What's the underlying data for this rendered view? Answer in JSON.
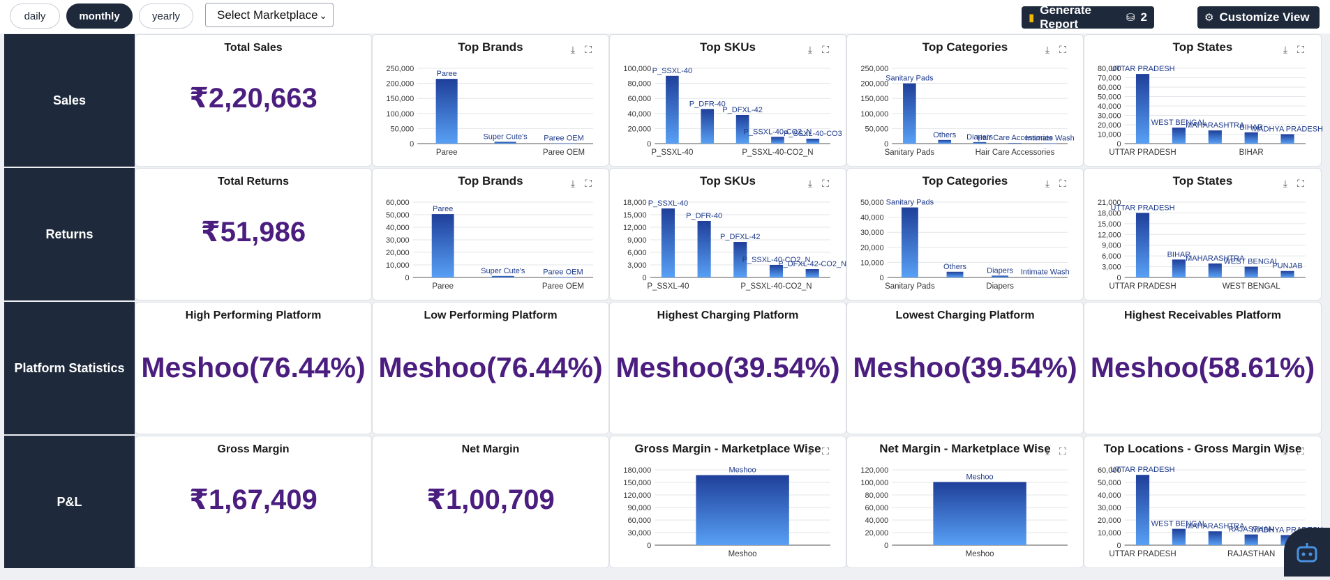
{
  "periods": [
    {
      "label": "daily",
      "active": false
    },
    {
      "label": "monthly",
      "active": true
    },
    {
      "label": "yearly",
      "active": false
    }
  ],
  "marketplace_select": {
    "value": "Select Marketplace"
  },
  "generate_report": {
    "label": "Generate Report",
    "count": "2"
  },
  "customize_view": {
    "label": "Customize View"
  },
  "colors": {
    "accent_text": "#4a1d7f",
    "dark_panel": "#1e2a3b",
    "bar_top": "#1f3f9a",
    "bar_bottom": "#58a0f5"
  },
  "rows": {
    "sales": {
      "label": "Sales",
      "kpi_title": "Total Sales",
      "kpi_value": "₹2,20,663"
    },
    "returns": {
      "label": "Returns",
      "kpi_title": "Total Returns",
      "kpi_value": "₹51,986"
    },
    "platform": {
      "label": "Platform Statistics",
      "cards": [
        {
          "title": "High Performing Platform",
          "value": "Meshoo(76.44%)"
        },
        {
          "title": "Low Performing Platform",
          "value": "Meshoo(76.44%)"
        },
        {
          "title": "Highest Charging Platform",
          "value": "Meshoo(39.54%)"
        },
        {
          "title": "Lowest Charging Platform",
          "value": "Meshoo(39.54%)"
        },
        {
          "title": "Highest Receivables Platform",
          "value": "Meshoo(58.61%)"
        }
      ]
    },
    "pl": {
      "label": "P&L",
      "gross_title": "Gross Margin",
      "gross_value": "₹1,67,409",
      "net_title": "Net Margin",
      "net_value": "₹1,00,709"
    }
  },
  "chart_data": [
    {
      "id": "sales_brands",
      "type": "bar",
      "title": "Top Brands",
      "categories": [
        "Paree",
        "Super Cute's",
        "Paree OEM"
      ],
      "values": [
        215000,
        6000,
        800
      ],
      "ticks": [
        0,
        50000,
        100000,
        150000,
        200000,
        250000
      ],
      "tick_labels": [
        "0",
        "50,000",
        "100,000",
        "150,000",
        "200,000",
        "250,000"
      ],
      "ylim": [
        0,
        250000
      ],
      "x_tick_labels": [
        "Paree",
        "",
        "Paree OEM"
      ]
    },
    {
      "id": "sales_skus",
      "type": "bar",
      "title": "Top SKUs",
      "categories": [
        "P_SSXL-40",
        "P_DFR-40",
        "P_DFXL-42",
        "P_SSXL-40-CO2_N",
        "P_SSXL-40-CO3"
      ],
      "values": [
        90000,
        46000,
        38000,
        9000,
        6500
      ],
      "ticks": [
        0,
        20000,
        40000,
        60000,
        80000,
        100000
      ],
      "tick_labels": [
        "0",
        "20,000",
        "40,000",
        "60,000",
        "80,000",
        "100,000"
      ],
      "ylim": [
        0,
        100000
      ],
      "x_tick_labels": [
        "P_SSXL-40",
        "",
        "",
        "P_SSXL-40-CO2_N",
        ""
      ]
    },
    {
      "id": "sales_categories",
      "type": "bar",
      "title": "Top Categories",
      "categories": [
        "Sanitary Pads",
        "Others",
        "Diapers",
        "Hair Care Accessories",
        "Intimate Wash"
      ],
      "values": [
        200000,
        12000,
        5000,
        2000,
        1000
      ],
      "ticks": [
        0,
        50000,
        100000,
        150000,
        200000,
        250000
      ],
      "tick_labels": [
        "0",
        "50,000",
        "100,000",
        "150,000",
        "200,000",
        "250,000"
      ],
      "ylim": [
        0,
        250000
      ],
      "x_tick_labels": [
        "Sanitary Pads",
        "",
        "",
        "Hair Care Accessories",
        ""
      ]
    },
    {
      "id": "sales_states",
      "type": "bar",
      "title": "Top States",
      "categories": [
        "UTTAR PRADESH",
        "WEST BENGAL",
        "MAHARASHTRA",
        "BIHAR",
        "MADHYA PRADESH"
      ],
      "values": [
        74000,
        17000,
        14000,
        12000,
        10000
      ],
      "ticks": [
        0,
        10000,
        20000,
        30000,
        40000,
        50000,
        60000,
        70000,
        80000
      ],
      "tick_labels": [
        "0",
        "10,000",
        "20,000",
        "30,000",
        "40,000",
        "50,000",
        "60,000",
        "70,000",
        "80,000"
      ],
      "ylim": [
        0,
        80000
      ],
      "x_tick_labels": [
        "UTTAR PRADESH",
        "",
        "",
        "BIHAR",
        ""
      ]
    },
    {
      "id": "ret_brands",
      "type": "bar",
      "title": "Top Brands",
      "categories": [
        "Paree",
        "Super Cute's",
        "Paree OEM"
      ],
      "values": [
        50500,
        1200,
        200
      ],
      "ticks": [
        0,
        10000,
        20000,
        30000,
        40000,
        50000,
        60000
      ],
      "tick_labels": [
        "0",
        "10,000",
        "20,000",
        "30,000",
        "40,000",
        "50,000",
        "60,000"
      ],
      "ylim": [
        0,
        60000
      ],
      "x_tick_labels": [
        "Paree",
        "",
        "Paree OEM"
      ]
    },
    {
      "id": "ret_skus",
      "type": "bar",
      "title": "Top SKUs",
      "categories": [
        "P_SSXL-40",
        "P_DFR-40",
        "P_DFXL-42",
        "P_SSXL-40-CO2_N",
        "P_DFXL-42-CO2_N"
      ],
      "values": [
        16500,
        13500,
        8500,
        3000,
        2000
      ],
      "ticks": [
        0,
        3000,
        6000,
        9000,
        12000,
        15000,
        18000
      ],
      "tick_labels": [
        "0",
        "3,000",
        "6,000",
        "9,000",
        "12,000",
        "15,000",
        "18,000"
      ],
      "ylim": [
        0,
        18000
      ],
      "x_tick_labels": [
        "P_SSXL-40",
        "",
        "",
        "P_SSXL-40-CO2_N",
        ""
      ]
    },
    {
      "id": "ret_categories",
      "type": "bar",
      "title": "Top Categories",
      "categories": [
        "Sanitary Pads",
        "Others",
        "Diapers",
        "Intimate Wash"
      ],
      "values": [
        46500,
        3800,
        1200,
        200
      ],
      "ticks": [
        0,
        10000,
        20000,
        30000,
        40000,
        50000
      ],
      "tick_labels": [
        "0",
        "10,000",
        "20,000",
        "30,000",
        "40,000",
        "50,000"
      ],
      "ylim": [
        0,
        50000
      ],
      "x_tick_labels": [
        "Sanitary Pads",
        "",
        "Diapers",
        ""
      ]
    },
    {
      "id": "ret_states",
      "type": "bar",
      "title": "Top States",
      "categories": [
        "UTTAR PRADESH",
        "BIHAR",
        "MAHARASHTRA",
        "WEST BENGAL",
        "PUNJAB"
      ],
      "values": [
        18000,
        5000,
        3900,
        3000,
        1800
      ],
      "ticks": [
        0,
        3000,
        6000,
        9000,
        12000,
        15000,
        18000,
        21000
      ],
      "tick_labels": [
        "0",
        "3,000",
        "6,000",
        "9,000",
        "12,000",
        "15,000",
        "18,000",
        "21,000"
      ],
      "ylim": [
        0,
        21000
      ],
      "x_tick_labels": [
        "UTTAR PRADESH",
        "",
        "",
        "WEST BENGAL",
        ""
      ]
    },
    {
      "id": "gm_market",
      "type": "bar",
      "title": "Gross Margin - Marketplace Wise",
      "categories": [
        "Meshoo"
      ],
      "values": [
        167409
      ],
      "ticks": [
        0,
        30000,
        60000,
        90000,
        120000,
        150000,
        180000
      ],
      "tick_labels": [
        "0",
        "30,000",
        "60,000",
        "90,000",
        "120,000",
        "150,000",
        "180,000"
      ],
      "ylim": [
        0,
        180000
      ],
      "x_tick_labels": [
        "Meshoo"
      ]
    },
    {
      "id": "nm_market",
      "type": "bar",
      "title": "Net Margin - Marketplace Wise",
      "categories": [
        "Meshoo"
      ],
      "values": [
        100709
      ],
      "ticks": [
        0,
        20000,
        40000,
        60000,
        80000,
        100000,
        120000
      ],
      "tick_labels": [
        "0",
        "20,000",
        "40,000",
        "60,000",
        "80,000",
        "100,000",
        "120,000"
      ],
      "ylim": [
        0,
        120000
      ],
      "x_tick_labels": [
        "Meshoo"
      ]
    },
    {
      "id": "gm_locations",
      "type": "bar",
      "title": "Top Locations - Gross Margin Wise",
      "categories": [
        "UTTAR PRADESH",
        "WEST BENGAL",
        "MAHARASHTRA",
        "RAJASTHAN",
        "MADHYA PRADESH"
      ],
      "values": [
        56000,
        13000,
        11000,
        8500,
        8000
      ],
      "ticks": [
        0,
        10000,
        20000,
        30000,
        40000,
        50000,
        60000
      ],
      "tick_labels": [
        "0",
        "10,000",
        "20,000",
        "30,000",
        "40,000",
        "50,000",
        "60,000"
      ],
      "ylim": [
        0,
        60000
      ],
      "x_tick_labels": [
        "UTTAR PRADESH",
        "",
        "",
        "RAJASTHAN",
        ""
      ]
    }
  ]
}
